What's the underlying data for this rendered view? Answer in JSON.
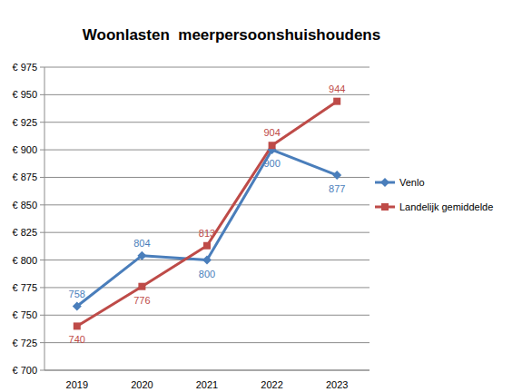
{
  "chart_data": {
    "type": "line",
    "title": "Woonlasten  meerpersoonshuishoudens",
    "categories": [
      "2019",
      "2020",
      "2021",
      "2022",
      "2023"
    ],
    "series": [
      {
        "name": "Venlo",
        "color": "#4a7ebb",
        "marker": "diamond",
        "values": [
          758,
          804,
          800,
          900,
          877
        ]
      },
      {
        "name": "Landelijk gemiddelde",
        "color": "#be4b48",
        "marker": "square",
        "values": [
          740,
          776,
          813,
          904,
          944
        ]
      }
    ],
    "ylim": [
      700,
      975
    ],
    "yticks": [
      {
        "value": 700,
        "label": "€ 700"
      },
      {
        "value": 725,
        "label": "€ 725"
      },
      {
        "value": 750,
        "label": "€ 750"
      },
      {
        "value": 775,
        "label": "€ 775"
      },
      {
        "value": 800,
        "label": "€ 800"
      },
      {
        "value": 825,
        "label": "€ 825"
      },
      {
        "value": 850,
        "label": "€ 850"
      },
      {
        "value": 875,
        "label": "€ 875"
      },
      {
        "value": 900,
        "label": "€ 900"
      },
      {
        "value": 925,
        "label": "€ 925"
      },
      {
        "value": 950,
        "label": "€ 950"
      },
      {
        "value": 975,
        "label": "€ 975"
      }
    ],
    "grid": true,
    "legend": "right",
    "data_labels": true
  }
}
